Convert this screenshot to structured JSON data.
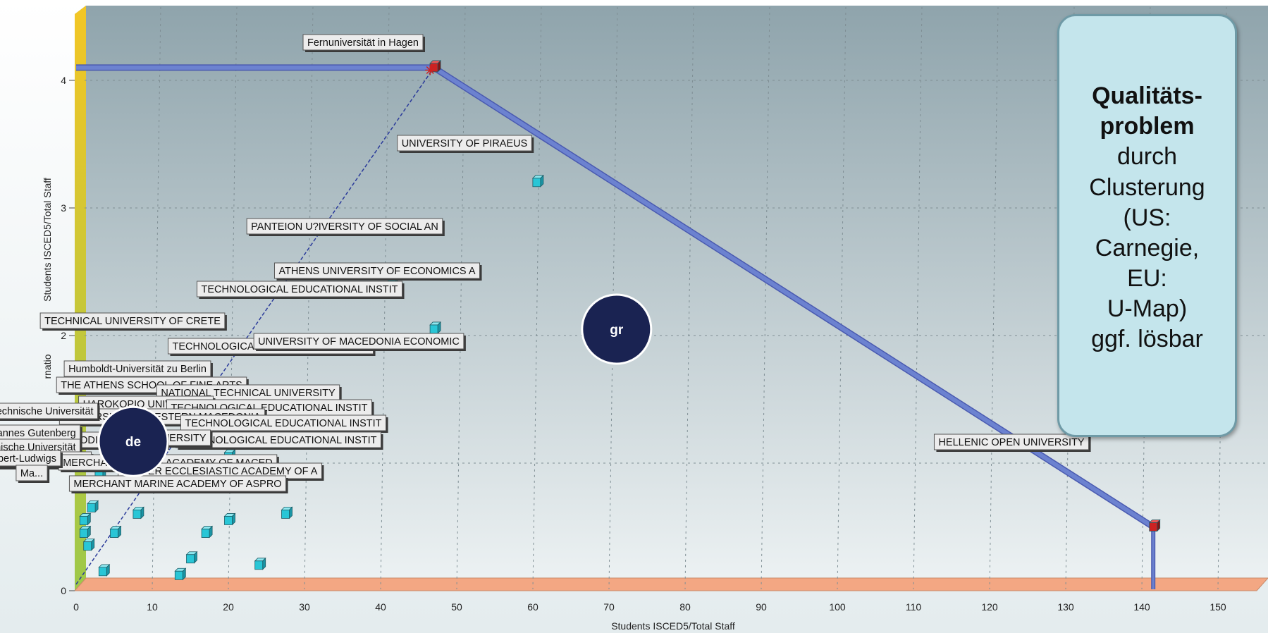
{
  "chart_data": {
    "type": "scatter",
    "xlabel": "Students ISCED5/Total Staff",
    "ylabel": "Students ISCED5/Total Staff",
    "ylabel_fragment": "rnatio",
    "xlim": [
      0,
      155
    ],
    "ylim": [
      0,
      4.5
    ],
    "xticks": [
      0,
      10,
      20,
      30,
      40,
      50,
      60,
      70,
      80,
      90,
      100,
      110,
      120,
      130,
      140,
      150
    ],
    "yticks": [
      0,
      1,
      2,
      3,
      4
    ],
    "grid": true,
    "points": [
      {
        "x": 47,
        "y": 4.1,
        "label": "Fernuniversität in Hagen",
        "color": "#cc2222"
      },
      {
        "x": 60.5,
        "y": 3.2,
        "label": "UNIVERSITY OF PIRAEUS",
        "color": "#29c6d6"
      },
      {
        "x": 41.5,
        "y": 2.45,
        "label": "PANTEION U?IVERSITY OF SOCIAL AN",
        "color": "#29c6d6"
      },
      {
        "x": 47,
        "y": 2.05,
        "label": "ATHENS UNIVERSITY OF ECONOMICS A",
        "color": "#29c6d6"
      },
      {
        "x": 30,
        "y": 1.9,
        "label": "TECHNOLOGICAL EDUCATIONAL INSTIT",
        "color": "#29c6d6"
      },
      {
        "x": 7.5,
        "y": 1.65,
        "label": "TECHNICAL UNIVERSITY OF CRETE",
        "color": "#29c6d6"
      },
      {
        "x": 13,
        "y": 1.6,
        "label": "TECHNOLOGICAL EDUCATIONAL INSTIT",
        "color": "#29c6d6"
      },
      {
        "x": 38,
        "y": 1.4,
        "label": "UNIVERSITY OF MACEDONIA ECONOMIC",
        "color": "#29c6d6"
      },
      {
        "x": 27.5,
        "y": 1.35,
        "label": "",
        "color": "#29c6d6"
      },
      {
        "x": 29,
        "y": 1.32,
        "label": "",
        "color": "#29c6d6"
      },
      {
        "x": 7,
        "y": 1.3,
        "label": "Humboldt-Universität zu Berlin",
        "color": "#29c6d6"
      },
      {
        "x": 10,
        "y": 1.15,
        "label": "THE ATHENS SCHOOL OF FINE ARTS",
        "color": "#29c6d6"
      },
      {
        "x": 20,
        "y": 1.05,
        "label": "NATIONAL TECHNICAL UNIVERSITY",
        "color": "#29c6d6"
      },
      {
        "x": 9,
        "y": 0.95,
        "label": "HAROKOPIO UNIVERSITY",
        "color": "#29c6d6"
      },
      {
        "x": 20,
        "y": 0.9,
        "label": "TECHNOLOGICAL EDUCATIONAL INSTIT",
        "color": "#29c6d6"
      },
      {
        "x": 8,
        "y": 0.85,
        "label": "UNIVERSITY OF WESTERN MACEDONIA",
        "color": "#29c6d6"
      },
      {
        "x": 3,
        "y": 0.9,
        "label": "Technische Universität",
        "color": "#29c6d6"
      },
      {
        "x": 22,
        "y": 0.8,
        "label": "TECHNOLOGICAL EDUCATIONAL INSTIT",
        "color": "#29c6d6"
      },
      {
        "x": 27.5,
        "y": 0.6,
        "label": "TECHNOLOGICAL EDUCATIONAL INSTIT",
        "color": "#29c6d6"
      },
      {
        "x": 20,
        "y": 0.55,
        "label": "IONIAN UNIVERSITY",
        "color": "#29c6d6"
      },
      {
        "x": 8,
        "y": 0.6,
        "label": "NATIONAL AND KAPODISTRIAN UNIV",
        "color": "#29c6d6"
      },
      {
        "x": 2,
        "y": 0.65,
        "label": "Johannes Gutenberg",
        "color": "#29c6d6"
      },
      {
        "x": 1,
        "y": 0.55,
        "label": "Technische Universität",
        "color": "#29c6d6"
      },
      {
        "x": 5,
        "y": 0.45,
        "label": "UNIVERSITY OF ...",
        "color": "#29c6d6"
      },
      {
        "x": 17,
        "y": 0.45,
        "label": "MERCHANT MARINE ACADEMY OF MACED",
        "color": "#29c6d6"
      },
      {
        "x": 1,
        "y": 0.45,
        "label": "Albert-Ludwigs",
        "color": "#29c6d6"
      },
      {
        "x": 1.5,
        "y": 0.35,
        "label": "Ma...",
        "color": "#29c6d6"
      },
      {
        "x": 24,
        "y": 0.2,
        "label": "HIGHER ECCLESIASTIC ACADEMY OF A",
        "color": "#29c6d6"
      },
      {
        "x": 15,
        "y": 0.25,
        "label": "MERCHANT MARINE ACADEMY OF ASPRO",
        "color": "#29c6d6"
      },
      {
        "x": 3.5,
        "y": 0.15,
        "label": "",
        "color": "#29c6d6"
      },
      {
        "x": 13.5,
        "y": 0.12,
        "label": "",
        "color": "#29c6d6"
      },
      {
        "x": 141.5,
        "y": 0.5,
        "label": "HELLENIC OPEN UNIVERSITY",
        "color": "#cc2222"
      }
    ],
    "frontier": [
      [
        0,
        0.05
      ],
      [
        47,
        4.1
      ],
      [
        141.5,
        0.5
      ]
    ],
    "frontier_left_level": 4.1,
    "clusters": [
      {
        "label": "gr",
        "x": 71,
        "y": 2.05
      },
      {
        "label": "de",
        "x": 7.5,
        "y": 1.17
      }
    ],
    "colors": {
      "plot_top": "#8fa4ac",
      "plot_bottom": "#eef3f4",
      "frontier": "#6c82d0",
      "ray": "#2a3a9a",
      "cluster": "#1a2352",
      "floor": "#f3a783",
      "wall": "#f3c625"
    }
  },
  "callout": {
    "line1": "Qualitäts-",
    "line2": "problem",
    "line3": "durch",
    "line4": "Clusterung",
    "line5": "(US:",
    "line6": "Carnegie,",
    "line7": "EU:",
    "line8": "U-Map)",
    "line9": "ggf. lösbar"
  }
}
